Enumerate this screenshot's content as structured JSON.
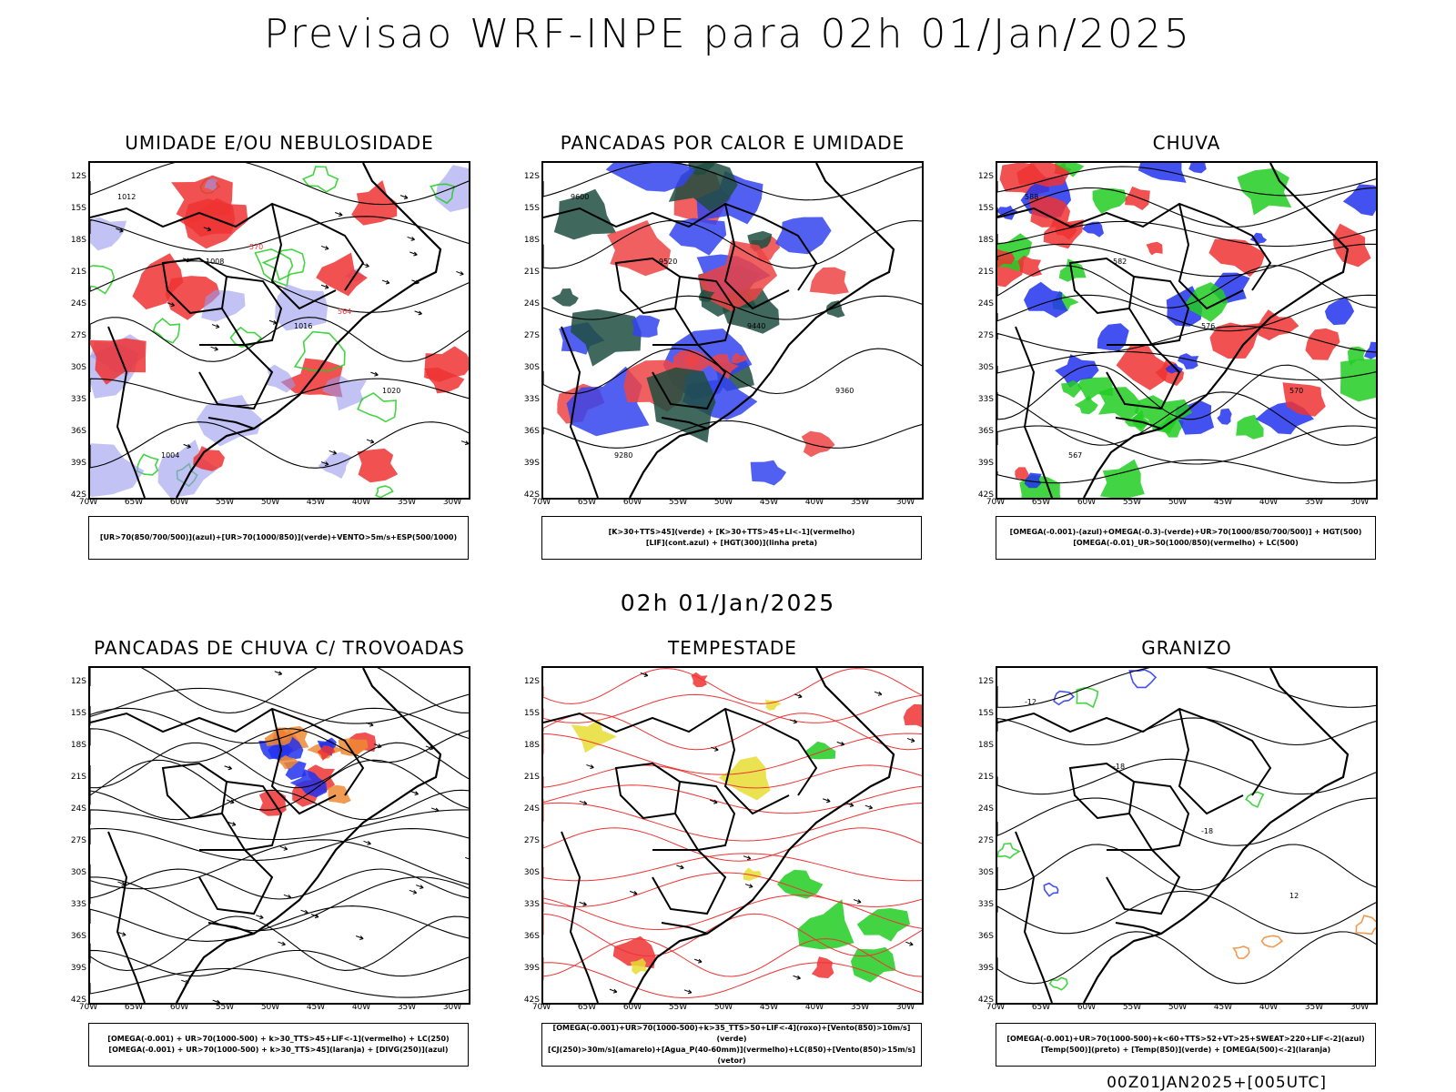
{
  "page": {
    "title": "Previsao WRF-INPE  para 02h 01/Jan/2025",
    "subtitle": "02h 01/Jan/2025",
    "footer": "00Z01JAN2025+[005UTC]"
  },
  "chart_data": {
    "type": "map-panels",
    "axes": {
      "lat_ticks": [
        "12S",
        "15S",
        "18S",
        "21S",
        "24S",
        "27S",
        "30S",
        "33S",
        "36S",
        "39S",
        "42S"
      ],
      "lon_ticks": [
        "70W",
        "65W",
        "60W",
        "55W",
        "50W",
        "45W",
        "40W",
        "35W",
        "30W"
      ],
      "lat_range": [
        -42,
        -10
      ],
      "lon_range": [
        -70,
        -28
      ]
    },
    "panels": [
      {
        "id": "umidade",
        "title": "UMIDADE E/OU NEBULOSIDADE",
        "legend": [
          "[UR>70(850/700/500)](azul)+[UR>70(1000/850)](verde)+VENTO>5m/s+ESP(500/1000)"
        ],
        "contour_labels": [
          "1012",
          "1008",
          "1016",
          "1020",
          "1004",
          "570",
          "564",
          "558"
        ],
        "colors": {
          "azul": "#9999ee",
          "verde": "#22cc22",
          "vermelho": "#ee3333"
        }
      },
      {
        "id": "pancadas-calor",
        "title": "PANCADAS POR CALOR E UMIDADE",
        "legend": [
          "[K>30+TTS>45](verde) + [K>30+TTS>45+LI<-1](vermelho)",
          "[LIF](cont.azul) + [HGT(300)](linha preta)"
        ],
        "contour_labels": [
          "9600",
          "9520",
          "9440",
          "9360",
          "9280"
        ],
        "colors": {
          "verde": "#1f4d40",
          "vermelho": "#ef4444",
          "azul": "#3344ee"
        }
      },
      {
        "id": "chuva",
        "title": "CHUVA",
        "legend": [
          "[OMEGA(-0.001)-(azul)+OMEGA(-0.3)-(verde)+UR>70(1000/850/700/500)] + HGT(500)",
          "[OMEGA(-0.01)_UR>50(1000/850)(vermelho) + LC(500)"
        ],
        "contour_labels": [
          "588",
          "582",
          "576",
          "570",
          "567"
        ],
        "colors": {
          "azul": "#2233ee",
          "verde": "#22cc22",
          "vermelho": "#ee3333"
        }
      },
      {
        "id": "trovoadas",
        "title": "PANCADAS DE CHUVA C/ TROVOADAS",
        "legend": [
          "[OMEGA(-0.001) + UR>70(1000-500) + k>30_TTS>45+LIF<-1](vermelho) + LC(250)",
          "[OMEGA(-0.001) + UR>70(1000-500) + k>30_TTS>45](laranja) + [DIVG(250)](azul)"
        ],
        "contour_labels": [],
        "colors": {
          "vermelho": "#ee3333",
          "laranja": "#ee8833",
          "azul": "#2233ee"
        }
      },
      {
        "id": "tempestade",
        "title": "TEMPESTADE",
        "legend": [
          "[OMEGA(-0.001)+UR>70(1000-500)+k>35_TTS>50+LIF<-4](roxo)+[Vento(850)>10m/s](verde)",
          "[CJ(250)>30m/s](amarelo)+[Agua_P(40-60mm)](vermelho)+LC(850)+[Vento(850)>15m/s](vetor)"
        ],
        "contour_labels": [],
        "colors": {
          "amarelo": "#e8dd33",
          "verde": "#22cc22",
          "vermelho": "#ee3333"
        }
      },
      {
        "id": "granizo",
        "title": "GRANIZO",
        "legend": [
          "[OMEGA(-0.001)+UR>70(1000-500)+k<60+TTS>52+VT>25+SWEAT>220+LIF<-2](azul)",
          "[Temp(500)](preto) + [Temp(850)](verde) + [OMEGA(500)<-2](laranja)"
        ],
        "contour_labels": [
          "-12",
          "-18",
          "-18",
          "12"
        ],
        "colors": {
          "verde": "#22cc22",
          "laranja": "#ee8833",
          "azul": "#2233ee"
        }
      }
    ]
  }
}
